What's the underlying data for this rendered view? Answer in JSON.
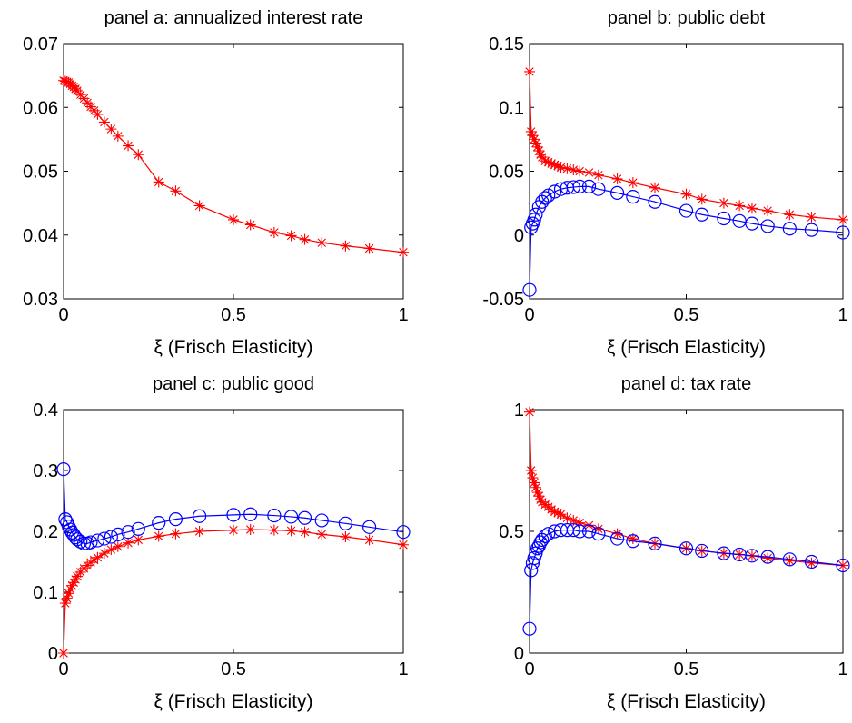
{
  "chart_data": [
    {
      "type": "line",
      "title": "panel a: annualized interest rate",
      "xlabel": "ξ (Frisch Elasticity)",
      "ylabel": "",
      "xlim": [
        0,
        1
      ],
      "ylim": [
        0.03,
        0.07
      ],
      "xticks": [
        "0",
        "0.5",
        "1"
      ],
      "yticks": [
        "0.03",
        "0.04",
        "0.05",
        "0.06",
        "0.07"
      ],
      "grid": false,
      "series": [
        {
          "color": "#ff0000",
          "marker": "star",
          "x": [
            0,
            0.005,
            0.01,
            0.015,
            0.02,
            0.025,
            0.03,
            0.035,
            0.04,
            0.05,
            0.06,
            0.07,
            0.08,
            0.09,
            0.1,
            0.12,
            0.14,
            0.16,
            0.19,
            0.22,
            0.28,
            0.33,
            0.4,
            0.5,
            0.55,
            0.62,
            0.67,
            0.71,
            0.76,
            0.83,
            0.9,
            1.0
          ],
          "y": [
            0.0642,
            0.0641,
            0.064,
            0.0639,
            0.0637,
            0.0634,
            0.0632,
            0.0629,
            0.0626,
            0.062,
            0.0614,
            0.0607,
            0.0601,
            0.0595,
            0.0589,
            0.0577,
            0.0566,
            0.0555,
            0.054,
            0.0526,
            0.0483,
            0.0469,
            0.0446,
            0.0424,
            0.0416,
            0.0404,
            0.0399,
            0.0393,
            0.0388,
            0.0383,
            0.0379,
            0.0373
          ]
        }
      ]
    },
    {
      "type": "line",
      "title": "panel b: public debt",
      "xlabel": "ξ (Frisch Elasticity)",
      "ylabel": "",
      "xlim": [
        0,
        1
      ],
      "ylim": [
        -0.05,
        0.15
      ],
      "xticks": [
        "0",
        "0.5",
        "1"
      ],
      "yticks": [
        "-0.05",
        "0",
        "0.05",
        "0.1",
        "0.15"
      ],
      "grid": false,
      "series": [
        {
          "color": "#ff0000",
          "marker": "star",
          "x": [
            0,
            0.005,
            0.01,
            0.015,
            0.02,
            0.025,
            0.03,
            0.035,
            0.04,
            0.05,
            0.06,
            0.07,
            0.08,
            0.09,
            0.1,
            0.12,
            0.14,
            0.16,
            0.19,
            0.22,
            0.28,
            0.33,
            0.4,
            0.5,
            0.55,
            0.62,
            0.67,
            0.71,
            0.76,
            0.83,
            0.9,
            1.0
          ],
          "y": [
            0.128,
            0.081,
            0.078,
            0.075,
            0.072,
            0.069,
            0.066,
            0.063,
            0.061,
            0.058,
            0.057,
            0.056,
            0.055,
            0.054,
            0.053,
            0.052,
            0.051,
            0.05,
            0.049,
            0.047,
            0.044,
            0.041,
            0.037,
            0.032,
            0.028,
            0.025,
            0.023,
            0.021,
            0.019,
            0.016,
            0.014,
            0.012
          ]
        },
        {
          "color": "#0000ff",
          "marker": "circle",
          "x": [
            0,
            0.005,
            0.01,
            0.015,
            0.02,
            0.03,
            0.04,
            0.05,
            0.06,
            0.08,
            0.1,
            0.12,
            0.14,
            0.16,
            0.19,
            0.22,
            0.28,
            0.33,
            0.4,
            0.5,
            0.55,
            0.62,
            0.67,
            0.71,
            0.76,
            0.83,
            0.9,
            1.0
          ],
          "y": [
            -0.043,
            0.006,
            0.009,
            0.012,
            0.016,
            0.022,
            0.026,
            0.029,
            0.031,
            0.034,
            0.036,
            0.037,
            0.0375,
            0.038,
            0.038,
            0.036,
            0.033,
            0.03,
            0.026,
            0.019,
            0.016,
            0.013,
            0.011,
            0.009,
            0.007,
            0.005,
            0.004,
            0.002
          ]
        }
      ]
    },
    {
      "type": "line",
      "title": "panel c: public good",
      "xlabel": "ξ (Frisch Elasticity)",
      "ylabel": "",
      "xlim": [
        0,
        1
      ],
      "ylim": [
        0,
        0.4
      ],
      "xticks": [
        "0",
        "0.5",
        "1"
      ],
      "yticks": [
        "0",
        "0.1",
        "0.2",
        "0.3",
        "0.4"
      ],
      "grid": false,
      "series": [
        {
          "color": "#ff0000",
          "marker": "star",
          "x": [
            0,
            0.005,
            0.01,
            0.015,
            0.02,
            0.025,
            0.03,
            0.035,
            0.04,
            0.05,
            0.06,
            0.07,
            0.08,
            0.09,
            0.1,
            0.12,
            0.14,
            0.16,
            0.19,
            0.22,
            0.28,
            0.33,
            0.4,
            0.5,
            0.55,
            0.62,
            0.67,
            0.71,
            0.76,
            0.83,
            0.9,
            1.0
          ],
          "y": [
            0.0,
            0.082,
            0.09,
            0.098,
            0.105,
            0.111,
            0.116,
            0.121,
            0.126,
            0.133,
            0.139,
            0.144,
            0.149,
            0.153,
            0.157,
            0.164,
            0.17,
            0.175,
            0.181,
            0.186,
            0.192,
            0.196,
            0.2,
            0.202,
            0.203,
            0.202,
            0.201,
            0.199,
            0.195,
            0.191,
            0.186,
            0.178
          ]
        },
        {
          "color": "#0000ff",
          "marker": "circle",
          "x": [
            0,
            0.005,
            0.01,
            0.015,
            0.02,
            0.025,
            0.03,
            0.035,
            0.04,
            0.05,
            0.06,
            0.07,
            0.08,
            0.1,
            0.12,
            0.14,
            0.16,
            0.19,
            0.22,
            0.28,
            0.33,
            0.4,
            0.5,
            0.55,
            0.62,
            0.67,
            0.71,
            0.76,
            0.83,
            0.9,
            1.0
          ],
          "y": [
            0.302,
            0.22,
            0.215,
            0.208,
            0.203,
            0.198,
            0.194,
            0.19,
            0.187,
            0.183,
            0.18,
            0.18,
            0.182,
            0.185,
            0.188,
            0.191,
            0.195,
            0.199,
            0.204,
            0.214,
            0.22,
            0.225,
            0.227,
            0.228,
            0.226,
            0.224,
            0.222,
            0.218,
            0.213,
            0.207,
            0.199
          ]
        }
      ]
    },
    {
      "type": "line",
      "title": "panel d: tax rate",
      "xlabel": "ξ (Frisch Elasticity)",
      "ylabel": "",
      "xlim": [
        0,
        1
      ],
      "ylim": [
        0,
        1
      ],
      "xticks": [
        "0",
        "0.5",
        "1"
      ],
      "yticks": [
        "0",
        "0.5",
        "1"
      ],
      "grid": false,
      "series": [
        {
          "color": "#ff0000",
          "marker": "star",
          "x": [
            0,
            0.005,
            0.01,
            0.015,
            0.02,
            0.025,
            0.03,
            0.035,
            0.04,
            0.05,
            0.06,
            0.07,
            0.08,
            0.09,
            0.1,
            0.12,
            0.14,
            0.16,
            0.19,
            0.22,
            0.28,
            0.33,
            0.4,
            0.5,
            0.55,
            0.62,
            0.67,
            0.71,
            0.76,
            0.83,
            0.9,
            1.0
          ],
          "y": [
            0.99,
            0.75,
            0.72,
            0.7,
            0.68,
            0.66,
            0.645,
            0.63,
            0.62,
            0.61,
            0.6,
            0.59,
            0.58,
            0.575,
            0.57,
            0.555,
            0.545,
            0.535,
            0.525,
            0.51,
            0.49,
            0.47,
            0.45,
            0.43,
            0.42,
            0.41,
            0.405,
            0.4,
            0.39,
            0.38,
            0.37,
            0.36
          ]
        },
        {
          "color": "#0000ff",
          "marker": "circle",
          "x": [
            0,
            0.005,
            0.01,
            0.015,
            0.02,
            0.025,
            0.03,
            0.035,
            0.04,
            0.05,
            0.06,
            0.08,
            0.1,
            0.12,
            0.14,
            0.16,
            0.19,
            0.22,
            0.28,
            0.33,
            0.4,
            0.5,
            0.55,
            0.62,
            0.67,
            0.71,
            0.76,
            0.83,
            0.9,
            1.0
          ],
          "y": [
            0.1,
            0.34,
            0.37,
            0.39,
            0.41,
            0.43,
            0.44,
            0.455,
            0.465,
            0.48,
            0.49,
            0.5,
            0.505,
            0.505,
            0.505,
            0.5,
            0.5,
            0.49,
            0.47,
            0.46,
            0.45,
            0.43,
            0.42,
            0.41,
            0.405,
            0.4,
            0.395,
            0.385,
            0.375,
            0.36
          ]
        }
      ]
    }
  ]
}
